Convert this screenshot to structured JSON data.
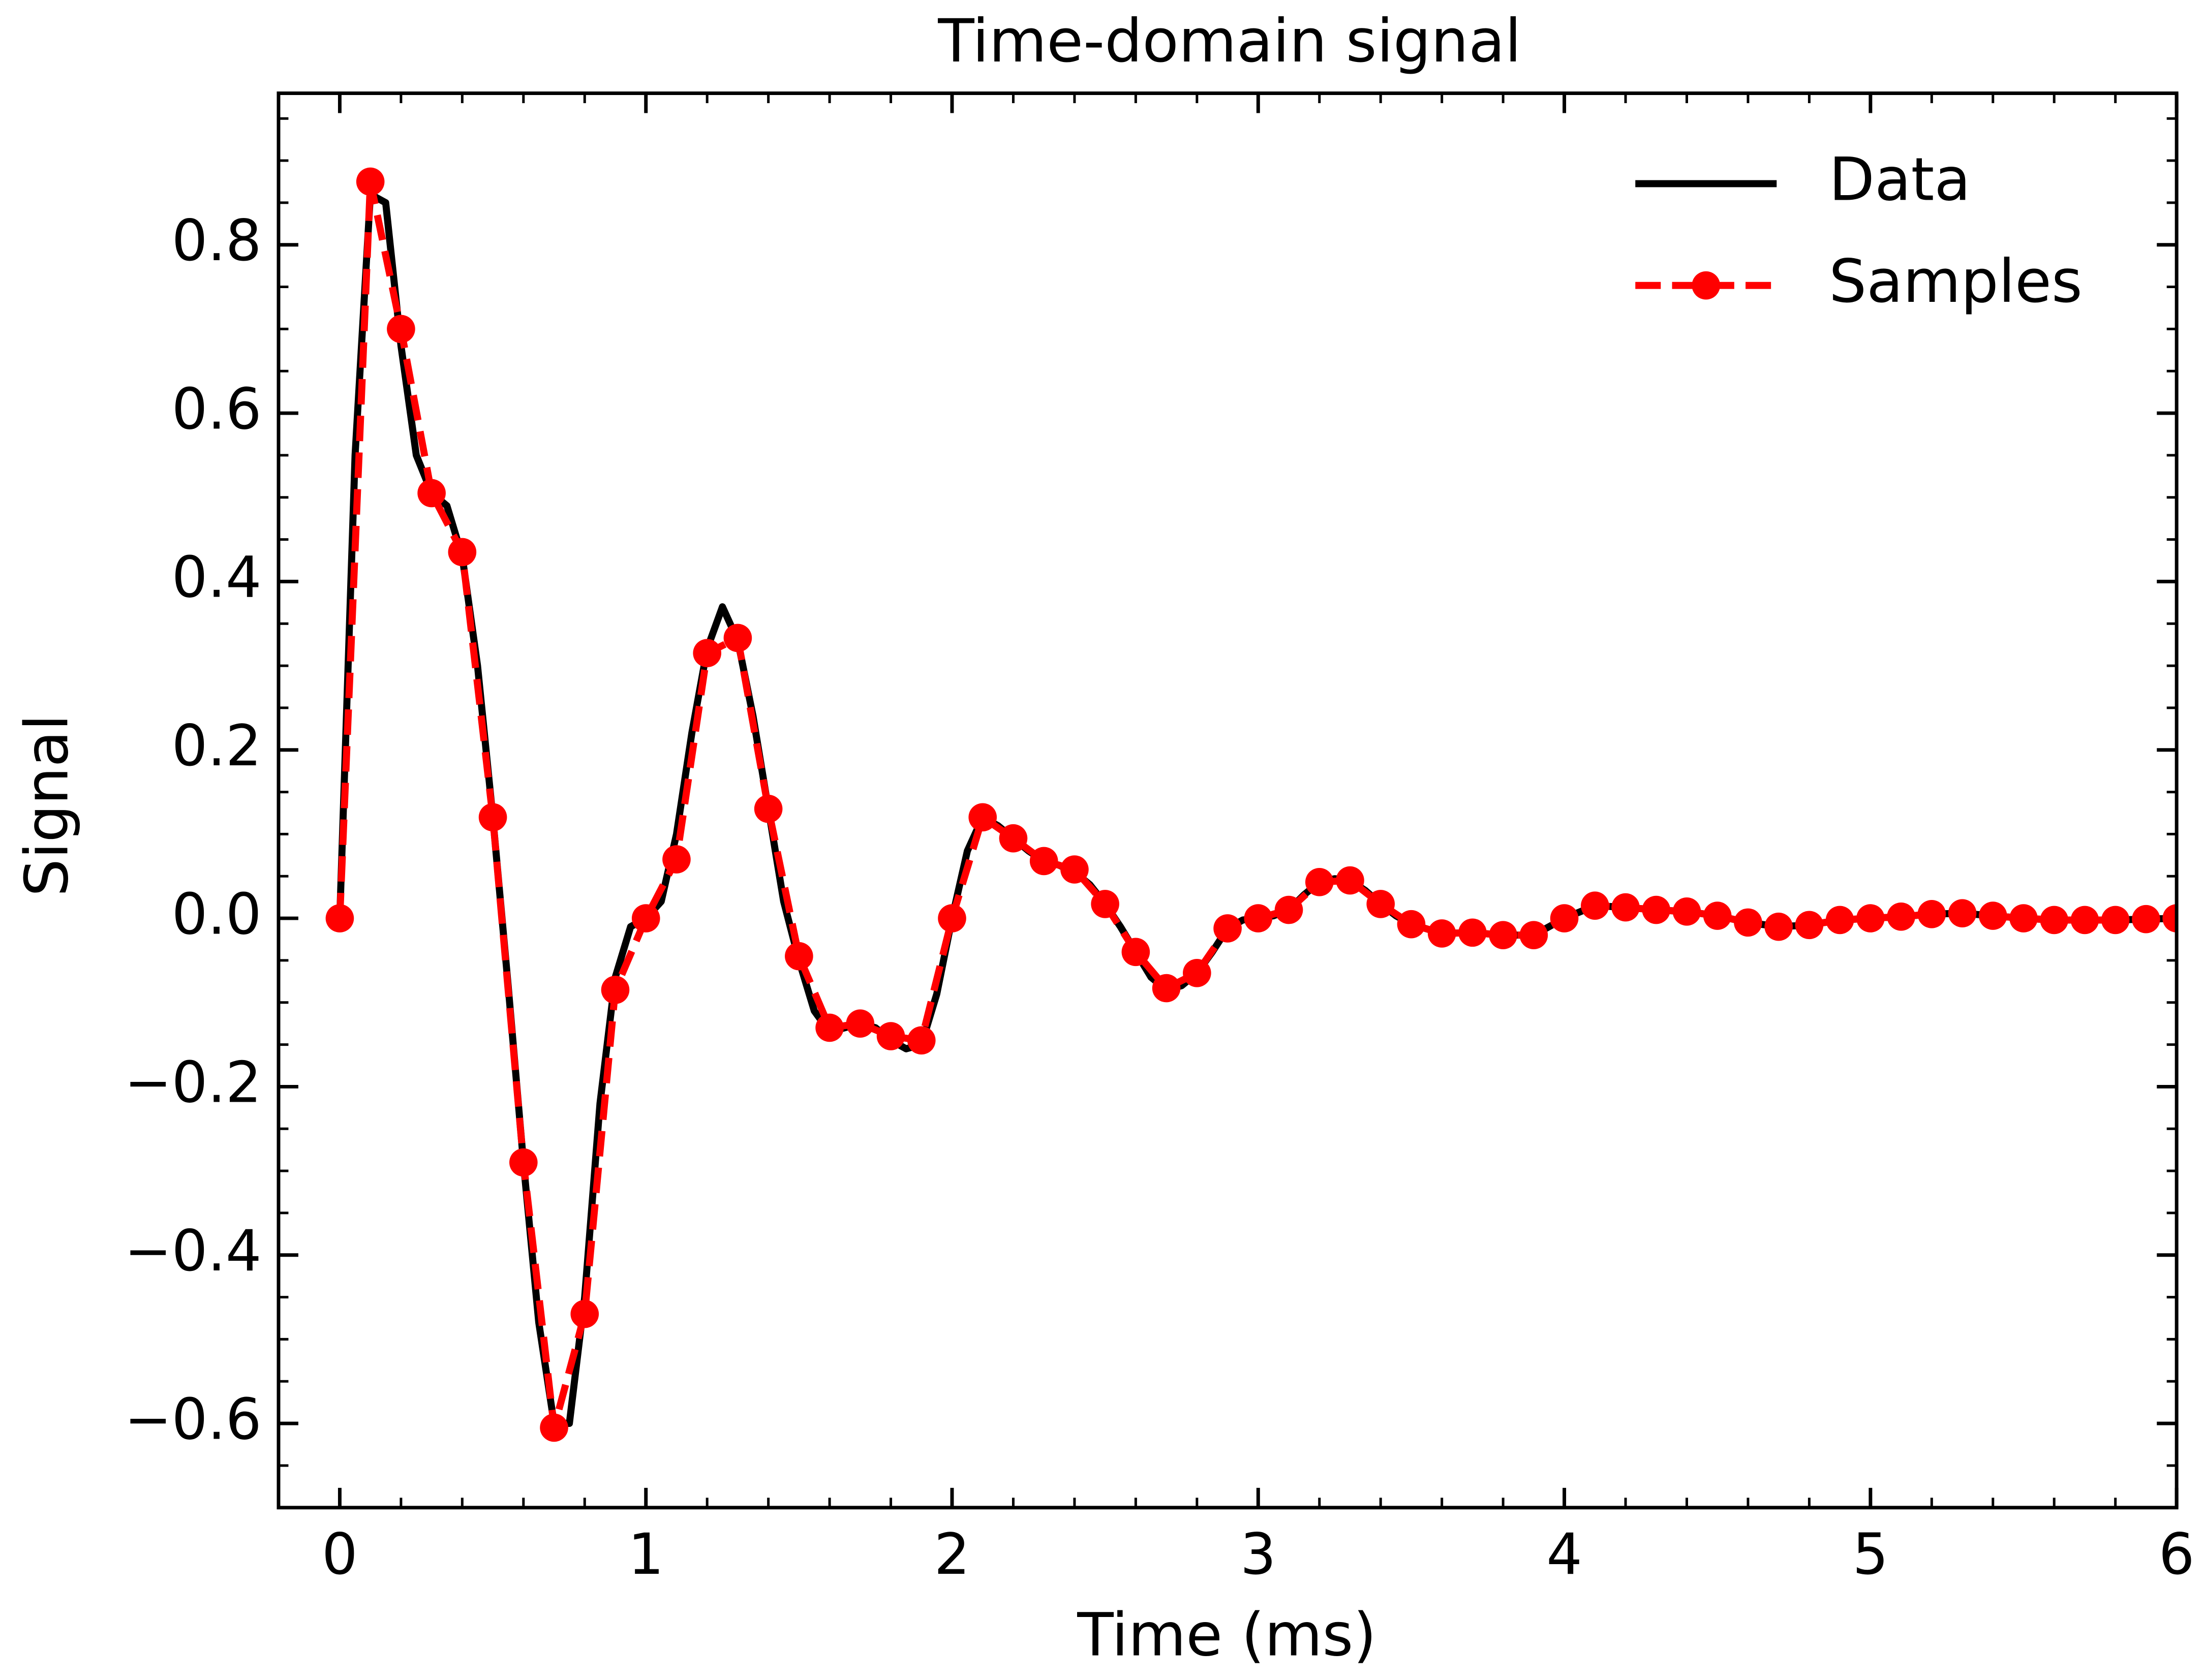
{
  "chart_data": {
    "type": "line",
    "title": "Time-domain signal",
    "xlabel": "Time (ms)",
    "ylabel": "Signal",
    "xlim": [
      -0.2,
      6
    ],
    "ylim": [
      -0.7,
      0.98
    ],
    "xticks": [
      0,
      1,
      2,
      3,
      4,
      5,
      6
    ],
    "yticks": [
      {
        "value": -0.6,
        "label": "−0.6"
      },
      {
        "value": -0.4,
        "label": "−0.4"
      },
      {
        "value": -0.2,
        "label": "−0.2"
      },
      {
        "value": 0,
        "label": "0.0"
      },
      0.2,
      0.4,
      0.6,
      0.8
    ],
    "xminorticks": [
      0.2,
      0.4,
      0.6,
      0.8,
      1.2,
      1.4,
      1.6,
      1.8,
      2.2,
      2.4,
      2.6,
      2.8,
      3.2,
      3.4,
      3.6,
      3.8,
      4.2,
      4.4,
      4.6,
      4.8,
      5.2,
      5.4,
      5.6,
      5.8
    ],
    "yminorticks": [
      -0.65,
      -0.55,
      -0.5,
      -0.45,
      -0.35,
      -0.3,
      -0.25,
      -0.15,
      -0.1,
      -0.05,
      0.05,
      0.1,
      0.15,
      0.25,
      0.3,
      0.35,
      0.45,
      0.5,
      0.55,
      0.65,
      0.7,
      0.75,
      0.85,
      0.9,
      0.95
    ],
    "legend": "upper right",
    "series": [
      {
        "name": "Data",
        "color": "#000000",
        "style": "solid",
        "x": [
          0,
          0.05,
          0.1,
          0.15,
          0.2,
          0.25,
          0.3,
          0.35,
          0.4,
          0.45,
          0.5,
          0.55,
          0.6,
          0.65,
          0.7,
          0.75,
          0.8,
          0.85,
          0.9,
          0.95,
          1.0,
          1.05,
          1.1,
          1.15,
          1.2,
          1.25,
          1.3,
          1.35,
          1.4,
          1.45,
          1.5,
          1.55,
          1.6,
          1.65,
          1.7,
          1.75,
          1.8,
          1.85,
          1.9,
          1.95,
          2.0,
          2.05,
          2.1,
          2.15,
          2.2,
          2.25,
          2.3,
          2.35,
          2.4,
          2.45,
          2.5,
          2.55,
          2.6,
          2.65,
          2.7,
          2.75,
          2.8,
          2.85,
          2.9,
          2.95,
          3.0,
          3.05,
          3.1,
          3.15,
          3.2,
          3.25,
          3.3,
          3.35,
          3.4,
          3.45,
          3.5,
          3.6,
          3.7,
          3.8,
          3.9,
          4.0,
          4.1,
          4.2,
          4.3,
          4.4,
          4.5,
          4.6,
          4.7,
          4.8,
          4.9,
          5.0,
          5.1,
          5.2,
          5.3,
          5.4,
          5.5,
          5.6,
          5.7,
          5.8,
          5.9,
          6.0
        ],
        "values": [
          0,
          0.55,
          0.86,
          0.85,
          0.68,
          0.55,
          0.505,
          0.49,
          0.43,
          0.3,
          0.12,
          -0.08,
          -0.29,
          -0.48,
          -0.6,
          -0.6,
          -0.45,
          -0.22,
          -0.07,
          -0.01,
          0.0,
          0.02,
          0.1,
          0.22,
          0.32,
          0.37,
          0.33,
          0.24,
          0.13,
          0.02,
          -0.05,
          -0.11,
          -0.135,
          -0.13,
          -0.125,
          -0.13,
          -0.145,
          -0.155,
          -0.15,
          -0.09,
          0.0,
          0.08,
          0.12,
          0.11,
          0.095,
          0.08,
          0.068,
          0.063,
          0.055,
          0.04,
          0.017,
          -0.01,
          -0.04,
          -0.07,
          -0.085,
          -0.08,
          -0.065,
          -0.04,
          -0.012,
          -0.002,
          0.0,
          0.003,
          0.01,
          0.028,
          0.043,
          0.047,
          0.045,
          0.033,
          0.017,
          0.003,
          -0.007,
          -0.018,
          -0.017,
          -0.02,
          -0.02,
          0.0,
          0.015,
          0.013,
          0.01,
          0.008,
          0.003,
          -0.005,
          -0.01,
          -0.008,
          -0.002,
          0.0,
          0.002,
          0.005,
          0.006,
          0.003,
          0.0,
          -0.002,
          -0.002,
          -0.002,
          -0.001,
          0.0
        ]
      },
      {
        "name": "Samples",
        "color": "#ff0000",
        "style": "dashed",
        "marker": "o",
        "x": [
          0,
          0.1,
          0.2,
          0.3,
          0.4,
          0.5,
          0.6,
          0.7,
          0.8,
          0.9,
          1.0,
          1.1,
          1.2,
          1.3,
          1.4,
          1.5,
          1.6,
          1.7,
          1.8,
          1.9,
          2.0,
          2.1,
          2.2,
          2.3,
          2.4,
          2.5,
          2.6,
          2.7,
          2.8,
          2.9,
          3.0,
          3.1,
          3.2,
          3.3,
          3.4,
          3.5,
          3.6,
          3.7,
          3.8,
          3.9,
          4.0,
          4.1,
          4.2,
          4.3,
          4.4,
          4.5,
          4.6,
          4.7,
          4.8,
          4.9,
          5.0,
          5.1,
          5.2,
          5.3,
          5.4,
          5.5,
          5.6,
          5.7,
          5.8,
          5.9,
          6.0
        ],
        "values": [
          0,
          0.875,
          0.7,
          0.505,
          0.435,
          0.12,
          -0.29,
          -0.605,
          -0.47,
          -0.085,
          0.0,
          0.07,
          0.315,
          0.333,
          0.13,
          -0.045,
          -0.13,
          -0.125,
          -0.14,
          -0.145,
          0.0,
          0.12,
          0.095,
          0.068,
          0.058,
          0.017,
          -0.04,
          -0.083,
          -0.065,
          -0.012,
          0.0,
          0.01,
          0.043,
          0.045,
          0.017,
          -0.007,
          -0.018,
          -0.017,
          -0.02,
          -0.02,
          0.0,
          0.015,
          0.013,
          0.01,
          0.008,
          0.003,
          -0.005,
          -0.01,
          -0.008,
          -0.002,
          0.0,
          0.002,
          0.005,
          0.006,
          0.003,
          0.0,
          -0.002,
          -0.002,
          -0.002,
          -0.001,
          0.0
        ]
      }
    ]
  }
}
